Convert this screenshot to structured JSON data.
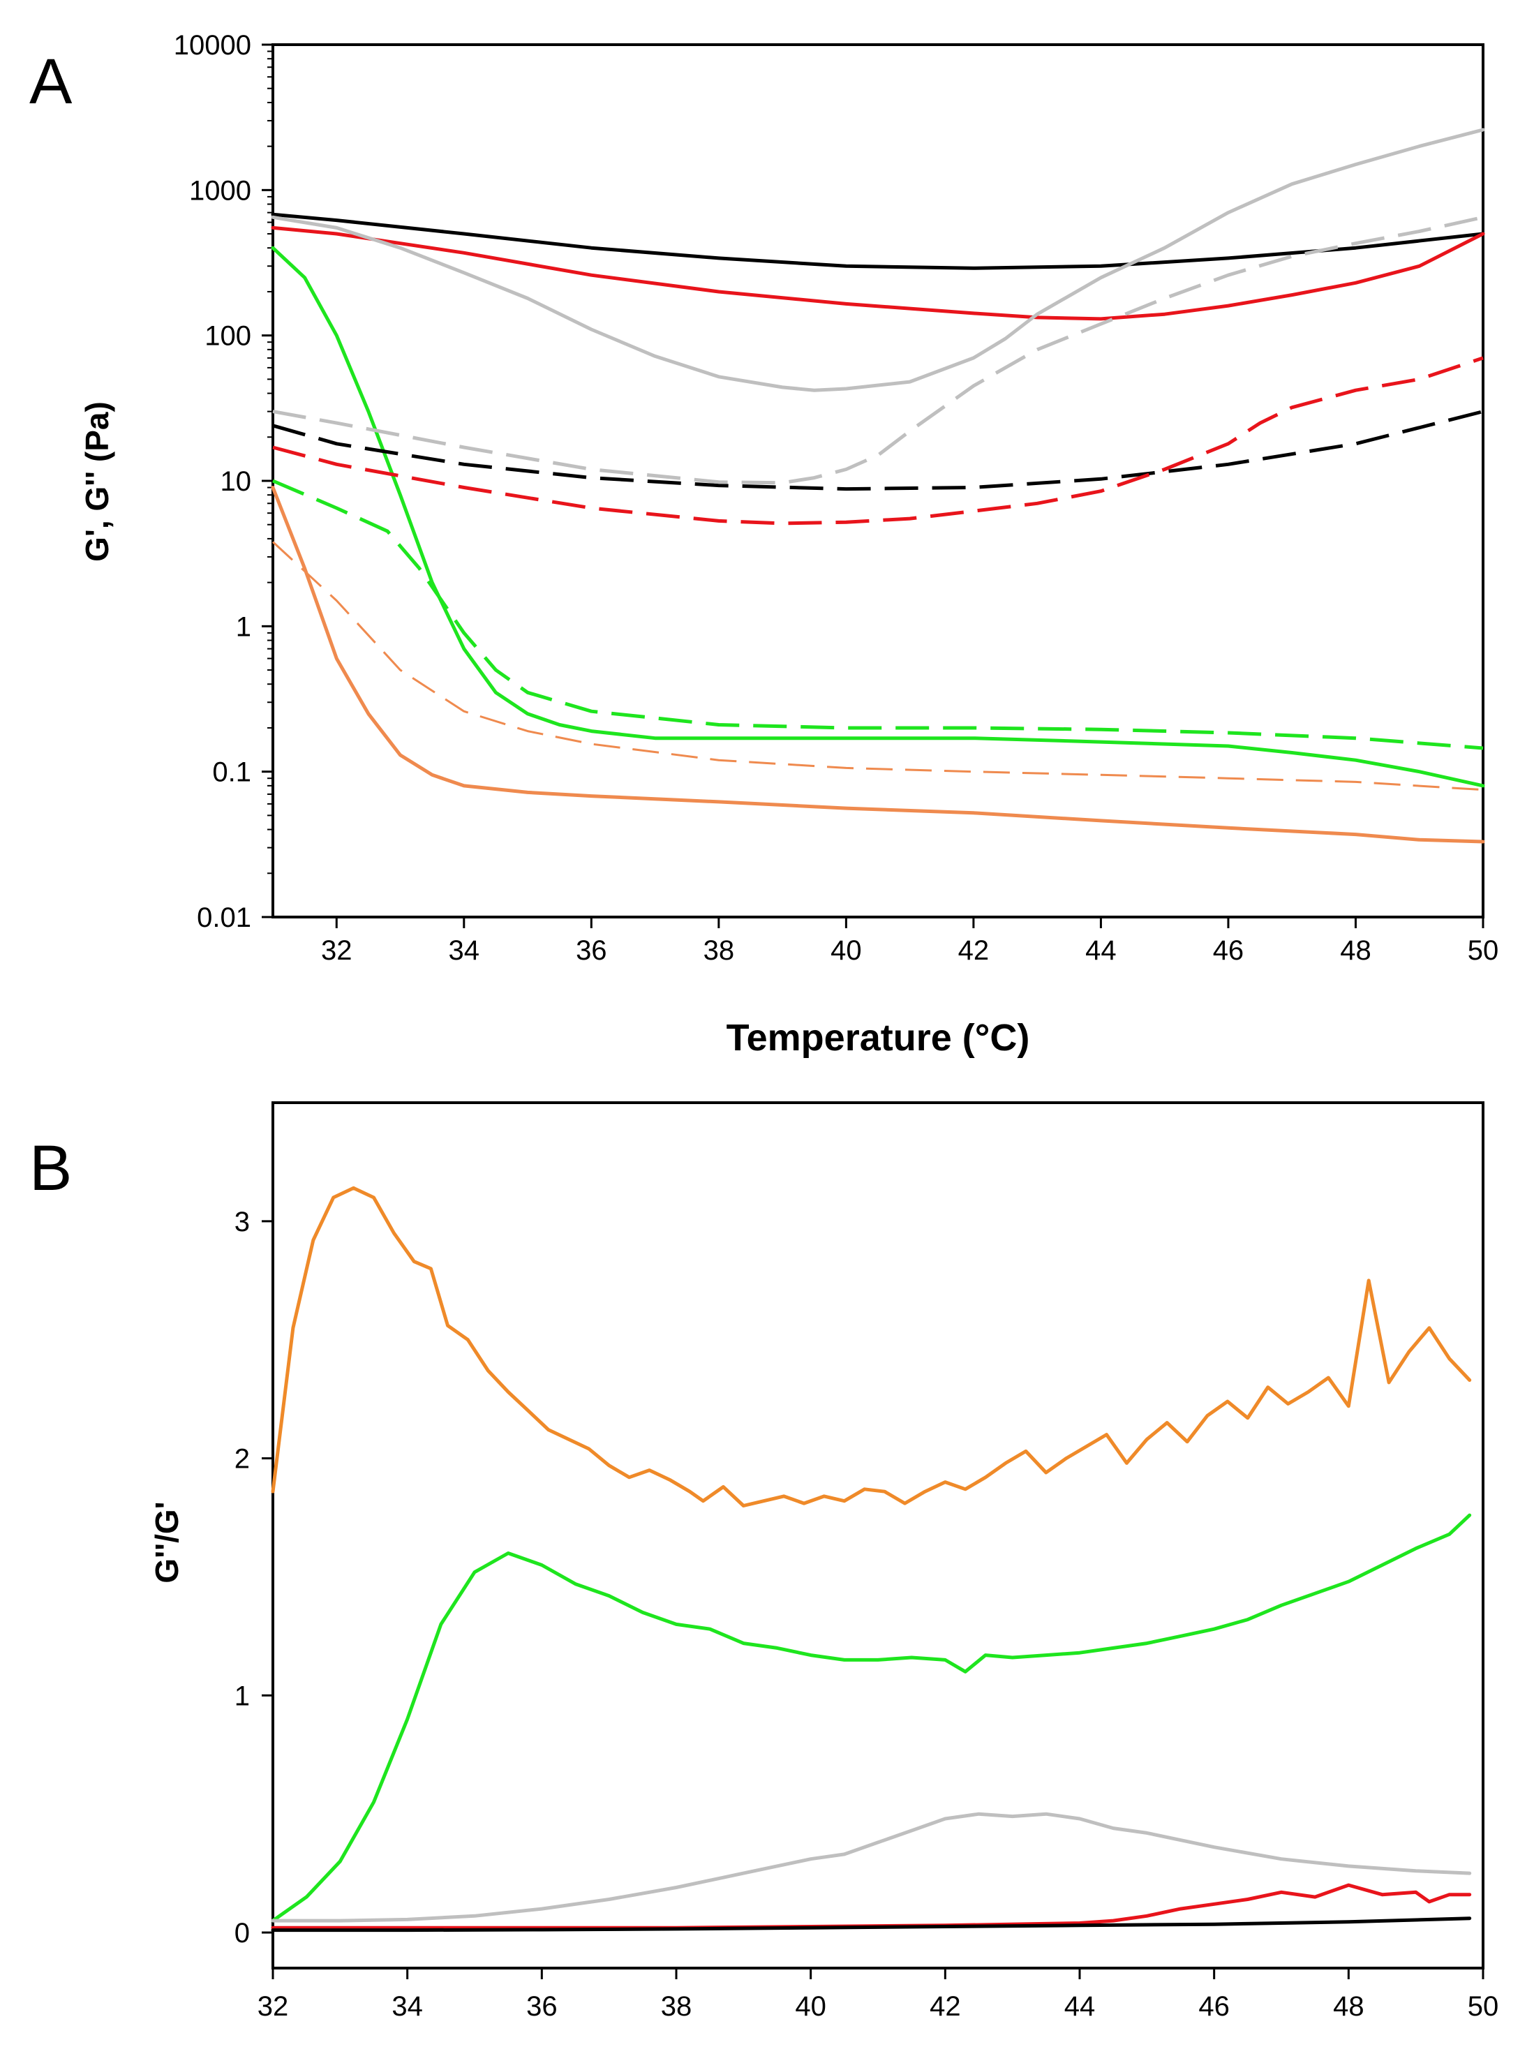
{
  "chart_data": [
    {
      "panel": "A",
      "type": "line",
      "yscale": "log",
      "xlabel": "Temperature (°C)",
      "ylabel": "G', G'' (Pa)",
      "xlim": [
        31,
        50
      ],
      "ylim": [
        0.01,
        10000
      ],
      "xticks": [
        32,
        34,
        36,
        38,
        40,
        42,
        44,
        46,
        48,
        50
      ],
      "yticks": [
        0.01,
        0.1,
        1,
        10,
        100,
        1000,
        10000
      ],
      "ytick_labels": [
        "0.01",
        "0.1",
        "1",
        "10",
        "100",
        "1000",
        "10000"
      ],
      "series": [
        {
          "name": "black G'",
          "color": "#000000",
          "dash": "solid",
          "x": [
            31,
            32,
            34,
            36,
            38,
            40,
            42,
            44,
            46,
            48,
            50
          ],
          "y": [
            680,
            620,
            500,
            400,
            340,
            300,
            290,
            300,
            340,
            400,
            500
          ]
        },
        {
          "name": "red G'",
          "color": "#e8141b",
          "dash": "solid",
          "x": [
            31,
            32,
            34,
            36,
            38,
            40,
            42,
            43,
            44,
            45,
            46,
            47,
            48,
            49,
            50
          ],
          "y": [
            550,
            500,
            370,
            260,
            200,
            165,
            142,
            133,
            130,
            140,
            160,
            190,
            230,
            300,
            500
          ]
        },
        {
          "name": "gray G'",
          "color": "#bfbfbf",
          "dash": "solid",
          "x": [
            31,
            32,
            33,
            34,
            35,
            36,
            37,
            38,
            39,
            39.5,
            40,
            41,
            42,
            42.5,
            43,
            44,
            45,
            46,
            47,
            48,
            49,
            50
          ],
          "y": [
            650,
            550,
            400,
            270,
            180,
            110,
            72,
            52,
            44,
            42,
            43,
            48,
            70,
            95,
            140,
            250,
            400,
            700,
            1100,
            1500,
            2000,
            2600
          ]
        },
        {
          "name": "green G'",
          "color": "#1ee51e",
          "dash": "solid",
          "x": [
            31,
            31.5,
            32,
            32.5,
            33,
            33.5,
            34,
            34.5,
            35,
            35.5,
            36,
            37,
            38,
            40,
            42,
            44,
            46,
            47,
            48,
            49,
            50
          ],
          "y": [
            400,
            250,
            100,
            30,
            8,
            2,
            0.7,
            0.35,
            0.25,
            0.21,
            0.19,
            0.17,
            0.17,
            0.17,
            0.17,
            0.16,
            0.15,
            0.135,
            0.12,
            0.1,
            0.08
          ]
        },
        {
          "name": "orange G'",
          "color": "#ef8a4e",
          "dash": "solid",
          "x": [
            31,
            31.5,
            32,
            32.5,
            33,
            33.5,
            34,
            35,
            36,
            38,
            40,
            42,
            44,
            46,
            48,
            49,
            50
          ],
          "y": [
            9,
            2.5,
            0.6,
            0.25,
            0.13,
            0.095,
            0.08,
            0.072,
            0.068,
            0.062,
            0.056,
            0.052,
            0.046,
            0.041,
            0.037,
            0.034,
            0.033
          ]
        },
        {
          "name": "black G''",
          "color": "#000000",
          "dash": "dashed",
          "x": [
            31,
            32,
            34,
            36,
            38,
            40,
            42,
            44,
            46,
            48,
            50
          ],
          "y": [
            24,
            18,
            13,
            10.5,
            9.3,
            8.8,
            9,
            10.3,
            13,
            18,
            30
          ]
        },
        {
          "name": "red G''",
          "color": "#e8141b",
          "dash": "dashed",
          "x": [
            31,
            32,
            34,
            36,
            38,
            39,
            40,
            41,
            42,
            43,
            44,
            45,
            46,
            46.5,
            47,
            48,
            49,
            50
          ],
          "y": [
            17,
            13,
            9,
            6.5,
            5.3,
            5.1,
            5.2,
            5.5,
            6.2,
            7,
            8.5,
            12,
            18,
            25,
            32,
            42,
            50,
            70
          ]
        },
        {
          "name": "gray G''",
          "color": "#bfbfbf",
          "dash": "dashed",
          "x": [
            31,
            32,
            34,
            36,
            38,
            39,
            39.5,
            40,
            40.5,
            41,
            42,
            43,
            44,
            45,
            46,
            47,
            48,
            49,
            50
          ],
          "y": [
            30,
            25,
            17,
            12,
            9.8,
            9.7,
            10.5,
            12,
            15,
            22,
            45,
            80,
            120,
            180,
            260,
            350,
            430,
            520,
            650
          ]
        },
        {
          "name": "green G''",
          "color": "#1ee51e",
          "dash": "dashed",
          "x": [
            31,
            32,
            32.8,
            33.3,
            34,
            34.5,
            35,
            36,
            38,
            40,
            42,
            44,
            46,
            48,
            50
          ],
          "y": [
            10,
            6.5,
            4.5,
            2.5,
            0.9,
            0.5,
            0.35,
            0.26,
            0.21,
            0.2,
            0.2,
            0.195,
            0.185,
            0.17,
            0.145
          ]
        },
        {
          "name": "orange G''",
          "color": "#ef8a4e",
          "dash": "thin-dashed",
          "x": [
            31,
            32,
            33,
            34,
            35,
            36,
            38,
            40,
            42,
            44,
            46,
            48,
            50
          ],
          "y": [
            3.8,
            1.5,
            0.5,
            0.26,
            0.19,
            0.155,
            0.12,
            0.106,
            0.1,
            0.095,
            0.09,
            0.085,
            0.075
          ]
        }
      ]
    },
    {
      "panel": "B",
      "type": "line",
      "yscale": "linear",
      "xlabel": "",
      "ylabel": "G''/G'",
      "xlim": [
        32,
        50
      ],
      "ylim": [
        -0.15,
        3.5
      ],
      "xticks": [
        32,
        34,
        36,
        38,
        40,
        42,
        44,
        46,
        48,
        50
      ],
      "yticks": [
        0,
        1,
        2,
        3
      ],
      "ytick_labels": [
        "0",
        "1",
        "2",
        "3"
      ],
      "series": [
        {
          "name": "orange",
          "color": "#ef8a29",
          "dash": "solid",
          "x": [
            32,
            32.3,
            32.6,
            32.9,
            33.2,
            33.5,
            33.8,
            34.1,
            34.35,
            34.6,
            34.9,
            35.2,
            35.5,
            35.8,
            36.1,
            36.4,
            36.7,
            37,
            37.3,
            37.6,
            37.9,
            38.2,
            38.4,
            38.7,
            39,
            39.3,
            39.6,
            39.9,
            40.2,
            40.5,
            40.8,
            41.1,
            41.4,
            41.7,
            42,
            42.3,
            42.6,
            42.9,
            43.2,
            43.5,
            43.8,
            44.1,
            44.4,
            44.7,
            45,
            45.3,
            45.6,
            45.9,
            46.2,
            46.5,
            46.8,
            47.1,
            47.4,
            47.7,
            48,
            48.3,
            48.6,
            48.9,
            49.2,
            49.5,
            49.8
          ],
          "y": [
            1.86,
            2.55,
            2.92,
            3.1,
            3.14,
            3.1,
            2.95,
            2.83,
            2.8,
            2.56,
            2.5,
            2.37,
            2.28,
            2.2,
            2.12,
            2.08,
            2.04,
            1.97,
            1.92,
            1.95,
            1.91,
            1.86,
            1.82,
            1.88,
            1.8,
            1.82,
            1.84,
            1.81,
            1.84,
            1.82,
            1.87,
            1.86,
            1.81,
            1.86,
            1.9,
            1.87,
            1.92,
            1.98,
            2.03,
            1.94,
            2.0,
            2.05,
            2.1,
            1.98,
            2.08,
            2.15,
            2.07,
            2.18,
            2.24,
            2.17,
            2.3,
            2.23,
            2.28,
            2.34,
            2.22,
            2.75,
            2.32,
            2.45,
            2.55,
            2.42,
            2.33
          ]
        },
        {
          "name": "green",
          "color": "#1ee51e",
          "dash": "solid",
          "x": [
            32,
            32.5,
            33,
            33.5,
            34,
            34.5,
            35,
            35.5,
            36,
            36.5,
            37,
            37.5,
            38,
            38.5,
            39,
            39.5,
            40,
            40.5,
            41,
            41.5,
            42,
            42.3,
            42.6,
            43,
            43.5,
            44,
            44.5,
            45,
            45.5,
            46,
            46.5,
            47,
            47.5,
            48,
            48.5,
            49,
            49.5,
            49.8
          ],
          "y": [
            0.05,
            0.15,
            0.3,
            0.55,
            0.9,
            1.3,
            1.52,
            1.6,
            1.55,
            1.47,
            1.42,
            1.35,
            1.3,
            1.28,
            1.22,
            1.2,
            1.17,
            1.15,
            1.15,
            1.16,
            1.15,
            1.1,
            1.17,
            1.16,
            1.17,
            1.18,
            1.2,
            1.22,
            1.25,
            1.28,
            1.32,
            1.38,
            1.43,
            1.48,
            1.55,
            1.62,
            1.68,
            1.76
          ]
        },
        {
          "name": "gray",
          "color": "#bfbfbf",
          "dash": "solid",
          "x": [
            32,
            33,
            34,
            35,
            36,
            37,
            38,
            39,
            40,
            40.5,
            41,
            41.5,
            42,
            42.5,
            43,
            43.5,
            44,
            44.5,
            45,
            46,
            47,
            48,
            49,
            49.8
          ],
          "y": [
            0.05,
            0.05,
            0.055,
            0.07,
            0.1,
            0.14,
            0.19,
            0.25,
            0.31,
            0.33,
            0.38,
            0.43,
            0.48,
            0.5,
            0.49,
            0.5,
            0.48,
            0.44,
            0.42,
            0.36,
            0.31,
            0.28,
            0.26,
            0.25
          ]
        },
        {
          "name": "red",
          "color": "#e8141b",
          "dash": "solid",
          "x": [
            32,
            34,
            36,
            38,
            40,
            42,
            44,
            44.5,
            45,
            45.5,
            46,
            46.5,
            47,
            47.5,
            48,
            48.5,
            49,
            49.2,
            49.5,
            49.8
          ],
          "y": [
            0.02,
            0.02,
            0.02,
            0.02,
            0.025,
            0.03,
            0.04,
            0.05,
            0.07,
            0.1,
            0.12,
            0.14,
            0.17,
            0.15,
            0.2,
            0.16,
            0.17,
            0.13,
            0.16,
            0.16
          ]
        },
        {
          "name": "black",
          "color": "#000000",
          "dash": "solid",
          "x": [
            32,
            34,
            36,
            38,
            40,
            42,
            44,
            46,
            48,
            49.8
          ],
          "y": [
            0.01,
            0.01,
            0.012,
            0.015,
            0.02,
            0.025,
            0.03,
            0.035,
            0.045,
            0.06
          ]
        }
      ]
    }
  ]
}
